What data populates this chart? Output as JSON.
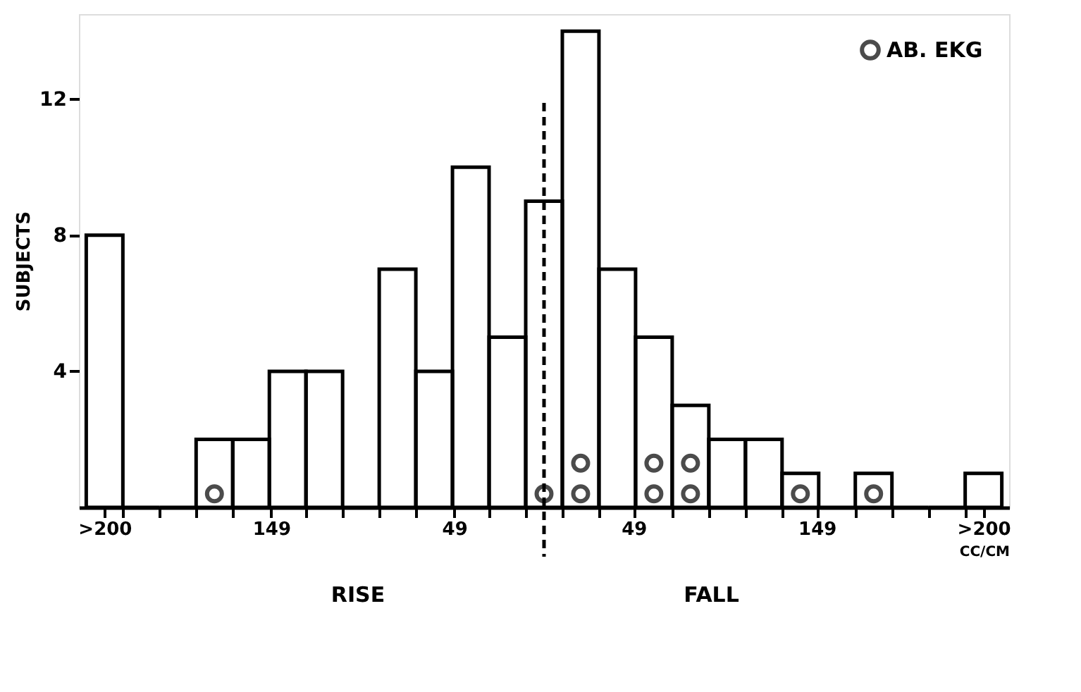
{
  "chart_data": {
    "type": "histogram",
    "ylabel": "SUBJECTS",
    "xlabel": "CC/CM",
    "annotations": [
      "RISE",
      "FALL"
    ],
    "bins": [
      -250,
      -230,
      -210,
      -190,
      -170,
      -150,
      -130,
      -110,
      -90,
      -70,
      -50,
      -30,
      -10,
      10,
      30,
      50,
      70,
      90,
      110,
      130,
      150,
      170,
      190,
      210,
      230,
      250
    ],
    "values": [
      8,
      0,
      0,
      2,
      2,
      4,
      4,
      0,
      7,
      4,
      10,
      5,
      9,
      14,
      7,
      5,
      3,
      2,
      2,
      1,
      0,
      1,
      0,
      0,
      1
    ],
    "color": "#000000",
    "xlim": [
      -254,
      254
    ],
    "ylim": [
      0,
      14.5
    ],
    "xticks": [
      {
        "value": -240,
        "label": ">200"
      },
      {
        "value": -230,
        "label": null
      },
      {
        "value": -210,
        "label": null
      },
      {
        "value": -190,
        "label": null
      },
      {
        "value": -170,
        "label": null
      },
      {
        "value": -149,
        "label": "149"
      },
      {
        "value": -130,
        "label": null
      },
      {
        "value": -110,
        "label": null
      },
      {
        "value": -90,
        "label": null
      },
      {
        "value": -70,
        "label": null
      },
      {
        "value": -49,
        "label": "49"
      },
      {
        "value": -30,
        "label": null
      },
      {
        "value": -10,
        "label": null
      },
      {
        "value": 10,
        "label": null
      },
      {
        "value": 30,
        "label": null
      },
      49,
      {
        "value": 70,
        "label": null
      },
      {
        "value": 90,
        "label": null
      },
      {
        "value": 110,
        "label": null
      },
      {
        "value": 130,
        "label": null
      },
      149,
      {
        "value": 170,
        "label": null
      },
      {
        "value": 190,
        "label": null
      },
      {
        "value": 210,
        "label": null
      },
      {
        "value": 230,
        "label": null
      },
      {
        "value": 240,
        "label": ">200"
      }
    ],
    "yticks": [
      4,
      8,
      12
    ],
    "grid": false,
    "legend": "top right",
    "ref_lines": [
      {
        "axis": "x",
        "value": 0,
        "line_style": "dashed",
        "color": "#000000"
      }
    ],
    "series": [
      {
        "name": "AB. EKG",
        "type": "scatter",
        "marker": "circle",
        "color": "#000000",
        "x": [
          -180,
          0,
          20,
          20,
          60,
          60,
          80,
          80,
          140,
          180
        ],
        "values": [
          0.4,
          0.4,
          0.4,
          1.3,
          0.4,
          1.3,
          0.4,
          1.3,
          0.4,
          0.4
        ]
      }
    ]
  }
}
